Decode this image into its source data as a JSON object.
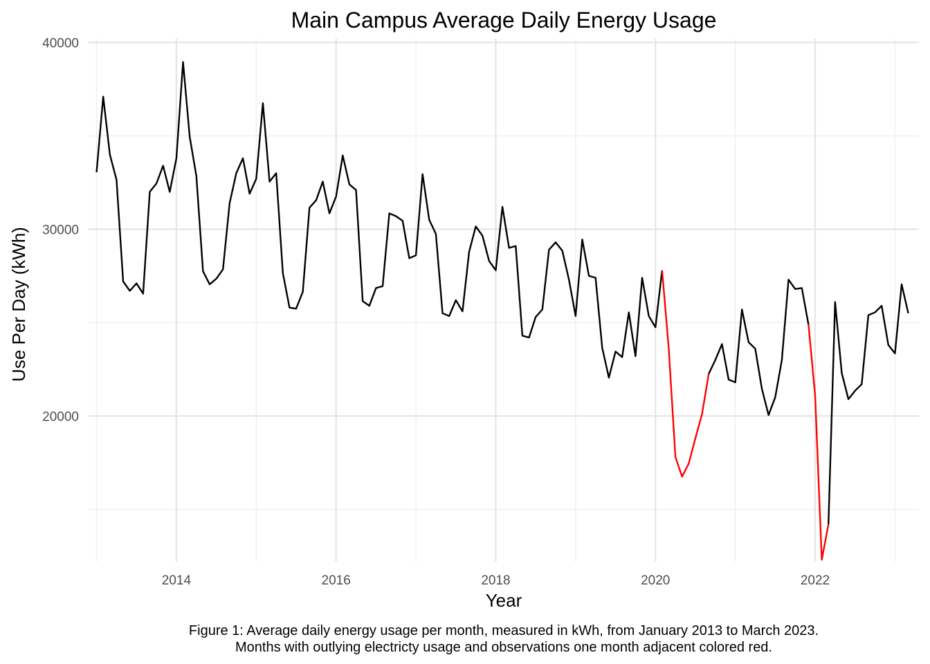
{
  "chart_data": {
    "type": "line",
    "title": "Main Campus Average Daily Energy Usage",
    "xlabel": "Year",
    "ylabel": "Use Per Day (kWh)",
    "caption_lines": [
      "Figure 1: Average daily energy usage per month, measured in kWh, from January 2013 to March 2023.",
      "Months with outlying electricty usage and observations one month adjacent colored red."
    ],
    "x_ticks": [
      "2014",
      "2016",
      "2018",
      "2020",
      "2022"
    ],
    "y_ticks": [
      "20000",
      "30000",
      "40000"
    ],
    "xlim": [
      2012.9,
      2023.3
    ],
    "ylim": [
      12200,
      40200
    ],
    "grid": true,
    "colors": {
      "normal": "#000000",
      "outlier": "#ff0000"
    },
    "x": [
      "2013-01",
      "2013-02",
      "2013-03",
      "2013-04",
      "2013-05",
      "2013-06",
      "2013-07",
      "2013-08",
      "2013-09",
      "2013-10",
      "2013-11",
      "2013-12",
      "2014-01",
      "2014-02",
      "2014-03",
      "2014-04",
      "2014-05",
      "2014-06",
      "2014-07",
      "2014-08",
      "2014-09",
      "2014-10",
      "2014-11",
      "2014-12",
      "2015-01",
      "2015-02",
      "2015-03",
      "2015-04",
      "2015-05",
      "2015-06",
      "2015-07",
      "2015-08",
      "2015-09",
      "2015-10",
      "2015-11",
      "2015-12",
      "2016-01",
      "2016-02",
      "2016-03",
      "2016-04",
      "2016-05",
      "2016-06",
      "2016-07",
      "2016-08",
      "2016-09",
      "2016-10",
      "2016-11",
      "2016-12",
      "2017-01",
      "2017-02",
      "2017-03",
      "2017-04",
      "2017-05",
      "2017-06",
      "2017-07",
      "2017-08",
      "2017-09",
      "2017-10",
      "2017-11",
      "2017-12",
      "2018-01",
      "2018-02",
      "2018-03",
      "2018-04",
      "2018-05",
      "2018-06",
      "2018-07",
      "2018-08",
      "2018-09",
      "2018-10",
      "2018-11",
      "2018-12",
      "2019-01",
      "2019-02",
      "2019-03",
      "2019-04",
      "2019-05",
      "2019-06",
      "2019-07",
      "2019-08",
      "2019-09",
      "2019-10",
      "2019-11",
      "2019-12",
      "2020-01",
      "2020-02",
      "2020-03",
      "2020-04",
      "2020-05",
      "2020-06",
      "2020-07",
      "2020-08",
      "2020-09",
      "2020-10",
      "2020-11",
      "2020-12",
      "2021-01",
      "2021-02",
      "2021-03",
      "2021-04",
      "2021-05",
      "2021-06",
      "2021-07",
      "2021-08",
      "2021-09",
      "2021-10",
      "2021-11",
      "2021-12",
      "2022-01",
      "2022-02",
      "2022-03",
      "2022-04",
      "2022-05",
      "2022-06",
      "2022-07",
      "2022-08",
      "2022-09",
      "2022-10",
      "2022-11",
      "2022-12",
      "2023-01",
      "2023-02",
      "2023-03"
    ],
    "y": [
      33050,
      37100,
      34000,
      32650,
      27200,
      26700,
      27100,
      26550,
      32000,
      32450,
      33400,
      32000,
      33800,
      38950,
      34950,
      32850,
      27750,
      27050,
      27350,
      27850,
      31400,
      33000,
      33800,
      31900,
      32700,
      36750,
      32550,
      33000,
      27650,
      25800,
      25750,
      26650,
      31150,
      31550,
      32550,
      30850,
      31750,
      33950,
      32400,
      32100,
      26150,
      25900,
      26850,
      26950,
      30850,
      30700,
      30450,
      28450,
      28600,
      32950,
      30500,
      29750,
      25500,
      25350,
      26200,
      25600,
      28800,
      30150,
      29650,
      28300,
      27800,
      31200,
      29000,
      29100,
      24300,
      24200,
      25300,
      25700,
      28900,
      29300,
      28850,
      27300,
      25350,
      29450,
      27500,
      27400,
      23650,
      22050,
      23450,
      23150,
      25550,
      23200,
      27400,
      25350,
      24750,
      27800,
      23600,
      17800,
      16750,
      17450,
      18800,
      20100,
      22250,
      23000,
      23850,
      21950,
      21800,
      25700,
      23950,
      23600,
      21450,
      20050,
      21000,
      23000,
      27300,
      26800,
      26850,
      24900,
      21100,
      12300,
      14200,
      26100,
      22300,
      20900,
      21350,
      21700,
      25400,
      25550,
      25900,
      23800,
      23350,
      27050,
      25500
    ],
    "outlier_segments": [
      [
        "2020-02",
        "2020-09"
      ],
      [
        "2021-12",
        "2022-03"
      ]
    ]
  }
}
